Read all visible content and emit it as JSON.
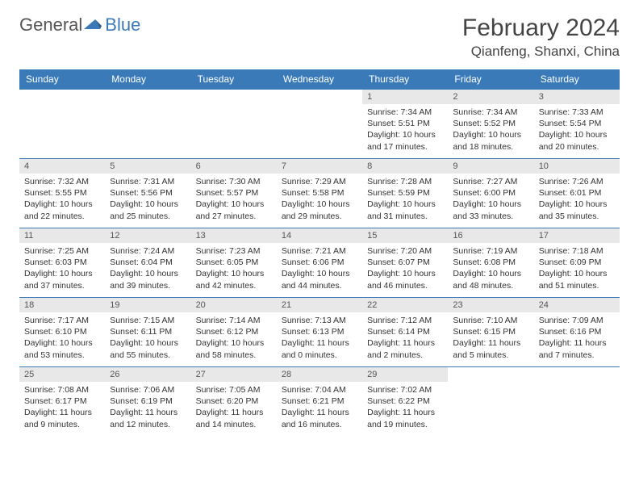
{
  "logo": {
    "text_general": "General",
    "text_blue": "Blue",
    "icon_color": "#3a7ab8"
  },
  "title": "February 2024",
  "location": "Qianfeng, Shanxi, China",
  "day_headers": [
    "Sunday",
    "Monday",
    "Tuesday",
    "Wednesday",
    "Thursday",
    "Friday",
    "Saturday"
  ],
  "colors": {
    "header_bg": "#3a7ab8",
    "header_text": "#ffffff",
    "day_num_bg": "#e8e8e8",
    "border": "#3a7ab8",
    "text": "#333333"
  },
  "weeks": [
    [
      null,
      null,
      null,
      null,
      {
        "num": "1",
        "sunrise": "Sunrise: 7:34 AM",
        "sunset": "Sunset: 5:51 PM",
        "daylight1": "Daylight: 10 hours",
        "daylight2": "and 17 minutes."
      },
      {
        "num": "2",
        "sunrise": "Sunrise: 7:34 AM",
        "sunset": "Sunset: 5:52 PM",
        "daylight1": "Daylight: 10 hours",
        "daylight2": "and 18 minutes."
      },
      {
        "num": "3",
        "sunrise": "Sunrise: 7:33 AM",
        "sunset": "Sunset: 5:54 PM",
        "daylight1": "Daylight: 10 hours",
        "daylight2": "and 20 minutes."
      }
    ],
    [
      {
        "num": "4",
        "sunrise": "Sunrise: 7:32 AM",
        "sunset": "Sunset: 5:55 PM",
        "daylight1": "Daylight: 10 hours",
        "daylight2": "and 22 minutes."
      },
      {
        "num": "5",
        "sunrise": "Sunrise: 7:31 AM",
        "sunset": "Sunset: 5:56 PM",
        "daylight1": "Daylight: 10 hours",
        "daylight2": "and 25 minutes."
      },
      {
        "num": "6",
        "sunrise": "Sunrise: 7:30 AM",
        "sunset": "Sunset: 5:57 PM",
        "daylight1": "Daylight: 10 hours",
        "daylight2": "and 27 minutes."
      },
      {
        "num": "7",
        "sunrise": "Sunrise: 7:29 AM",
        "sunset": "Sunset: 5:58 PM",
        "daylight1": "Daylight: 10 hours",
        "daylight2": "and 29 minutes."
      },
      {
        "num": "8",
        "sunrise": "Sunrise: 7:28 AM",
        "sunset": "Sunset: 5:59 PM",
        "daylight1": "Daylight: 10 hours",
        "daylight2": "and 31 minutes."
      },
      {
        "num": "9",
        "sunrise": "Sunrise: 7:27 AM",
        "sunset": "Sunset: 6:00 PM",
        "daylight1": "Daylight: 10 hours",
        "daylight2": "and 33 minutes."
      },
      {
        "num": "10",
        "sunrise": "Sunrise: 7:26 AM",
        "sunset": "Sunset: 6:01 PM",
        "daylight1": "Daylight: 10 hours",
        "daylight2": "and 35 minutes."
      }
    ],
    [
      {
        "num": "11",
        "sunrise": "Sunrise: 7:25 AM",
        "sunset": "Sunset: 6:03 PM",
        "daylight1": "Daylight: 10 hours",
        "daylight2": "and 37 minutes."
      },
      {
        "num": "12",
        "sunrise": "Sunrise: 7:24 AM",
        "sunset": "Sunset: 6:04 PM",
        "daylight1": "Daylight: 10 hours",
        "daylight2": "and 39 minutes."
      },
      {
        "num": "13",
        "sunrise": "Sunrise: 7:23 AM",
        "sunset": "Sunset: 6:05 PM",
        "daylight1": "Daylight: 10 hours",
        "daylight2": "and 42 minutes."
      },
      {
        "num": "14",
        "sunrise": "Sunrise: 7:21 AM",
        "sunset": "Sunset: 6:06 PM",
        "daylight1": "Daylight: 10 hours",
        "daylight2": "and 44 minutes."
      },
      {
        "num": "15",
        "sunrise": "Sunrise: 7:20 AM",
        "sunset": "Sunset: 6:07 PM",
        "daylight1": "Daylight: 10 hours",
        "daylight2": "and 46 minutes."
      },
      {
        "num": "16",
        "sunrise": "Sunrise: 7:19 AM",
        "sunset": "Sunset: 6:08 PM",
        "daylight1": "Daylight: 10 hours",
        "daylight2": "and 48 minutes."
      },
      {
        "num": "17",
        "sunrise": "Sunrise: 7:18 AM",
        "sunset": "Sunset: 6:09 PM",
        "daylight1": "Daylight: 10 hours",
        "daylight2": "and 51 minutes."
      }
    ],
    [
      {
        "num": "18",
        "sunrise": "Sunrise: 7:17 AM",
        "sunset": "Sunset: 6:10 PM",
        "daylight1": "Daylight: 10 hours",
        "daylight2": "and 53 minutes."
      },
      {
        "num": "19",
        "sunrise": "Sunrise: 7:15 AM",
        "sunset": "Sunset: 6:11 PM",
        "daylight1": "Daylight: 10 hours",
        "daylight2": "and 55 minutes."
      },
      {
        "num": "20",
        "sunrise": "Sunrise: 7:14 AM",
        "sunset": "Sunset: 6:12 PM",
        "daylight1": "Daylight: 10 hours",
        "daylight2": "and 58 minutes."
      },
      {
        "num": "21",
        "sunrise": "Sunrise: 7:13 AM",
        "sunset": "Sunset: 6:13 PM",
        "daylight1": "Daylight: 11 hours",
        "daylight2": "and 0 minutes."
      },
      {
        "num": "22",
        "sunrise": "Sunrise: 7:12 AM",
        "sunset": "Sunset: 6:14 PM",
        "daylight1": "Daylight: 11 hours",
        "daylight2": "and 2 minutes."
      },
      {
        "num": "23",
        "sunrise": "Sunrise: 7:10 AM",
        "sunset": "Sunset: 6:15 PM",
        "daylight1": "Daylight: 11 hours",
        "daylight2": "and 5 minutes."
      },
      {
        "num": "24",
        "sunrise": "Sunrise: 7:09 AM",
        "sunset": "Sunset: 6:16 PM",
        "daylight1": "Daylight: 11 hours",
        "daylight2": "and 7 minutes."
      }
    ],
    [
      {
        "num": "25",
        "sunrise": "Sunrise: 7:08 AM",
        "sunset": "Sunset: 6:17 PM",
        "daylight1": "Daylight: 11 hours",
        "daylight2": "and 9 minutes."
      },
      {
        "num": "26",
        "sunrise": "Sunrise: 7:06 AM",
        "sunset": "Sunset: 6:19 PM",
        "daylight1": "Daylight: 11 hours",
        "daylight2": "and 12 minutes."
      },
      {
        "num": "27",
        "sunrise": "Sunrise: 7:05 AM",
        "sunset": "Sunset: 6:20 PM",
        "daylight1": "Daylight: 11 hours",
        "daylight2": "and 14 minutes."
      },
      {
        "num": "28",
        "sunrise": "Sunrise: 7:04 AM",
        "sunset": "Sunset: 6:21 PM",
        "daylight1": "Daylight: 11 hours",
        "daylight2": "and 16 minutes."
      },
      {
        "num": "29",
        "sunrise": "Sunrise: 7:02 AM",
        "sunset": "Sunset: 6:22 PM",
        "daylight1": "Daylight: 11 hours",
        "daylight2": "and 19 minutes."
      },
      null,
      null
    ]
  ]
}
